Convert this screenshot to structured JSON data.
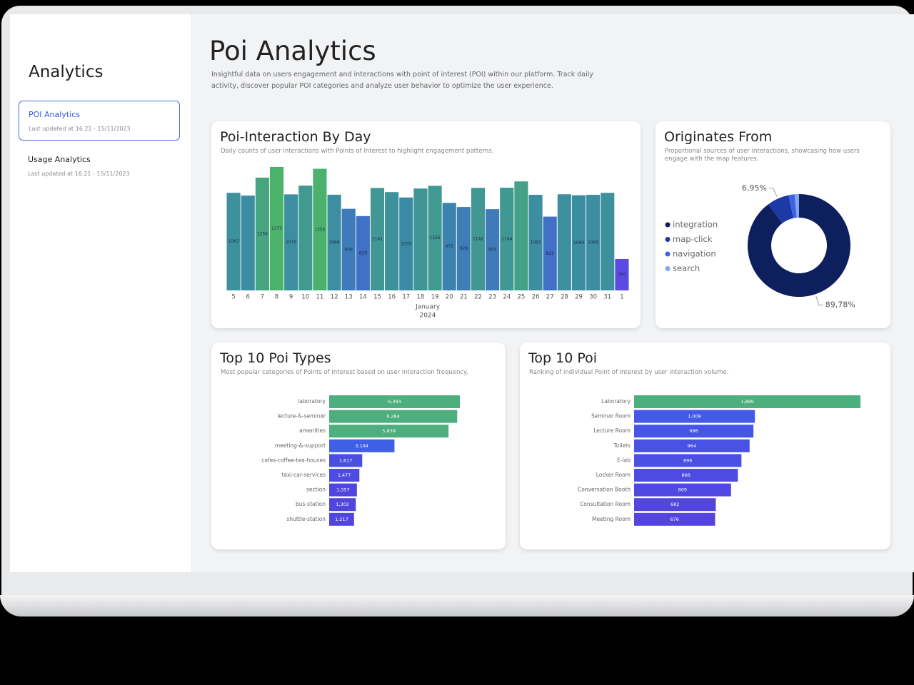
{
  "sidebar": {
    "title": "Analytics",
    "items": [
      {
        "label": "POI Analytics",
        "updated": "Last updated at 16.21 - 15/11/2023"
      },
      {
        "label": "Usage Analytics",
        "updated": "Last updated at 16.21 - 15/11/2023"
      }
    ]
  },
  "header": {
    "title": "Poi Analytics",
    "description": "Insightful data on users engagement and interactions with point of interest (POI) within our platform. Track daily activity, discover popular POI categories and analyze user behavior to optimize the user experience."
  },
  "chart_data": [
    {
      "type": "bar",
      "orientation": "vertical",
      "title": "Poi-Interaction By Day",
      "subtitle": "Daily counts of user interactions with Points of Interest to highlight engagement patterns.",
      "categories": [
        "5",
        "6",
        "7",
        "8",
        "9",
        "10",
        "11",
        "12",
        "13",
        "14",
        "15",
        "16",
        "17",
        "18",
        "19",
        "20",
        "21",
        "22",
        "23",
        "24",
        "25",
        "26",
        "27",
        "28",
        "29",
        "30",
        "31",
        "1"
      ],
      "values": [
        1087,
        1056,
        1256,
        1375,
        1070,
        1167,
        1355,
        1066,
        909,
        828,
        1141,
        1095,
        1035,
        1135,
        1165,
        975,
        929,
        1142,
        905,
        1144,
        1214,
        1065,
        822,
        1071,
        1060,
        1065,
        1087,
        350
      ],
      "value_labels": [
        "1087",
        null,
        "1256",
        "1375",
        "1070",
        null,
        "1355",
        "1066",
        "909",
        "828",
        "1141",
        null,
        "1035",
        null,
        "1165",
        "975",
        "929",
        "1142",
        "905",
        "1144",
        null,
        "1065",
        "822",
        null,
        "1060",
        "1065",
        null,
        "350"
      ],
      "x_label": [
        "January",
        "2024"
      ],
      "color_scale": [
        "#5b4be2",
        "#4660dc",
        "#3a8aa6",
        "#4cb46a"
      ]
    },
    {
      "type": "pie",
      "title": "Originates From",
      "subtitle": "Proportional sources of user interactions, showcasing how users engage with the map features.",
      "categories": [
        "integration",
        "map-click",
        "navigation",
        "search"
      ],
      "values": [
        89.78,
        6.95,
        1.9,
        1.37
      ],
      "value_labels": [
        "89,78%",
        "6,95%",
        null,
        null
      ],
      "colors": [
        "#0d1f5c",
        "#1c3aa6",
        "#3d63e0",
        "#7fa6f0"
      ]
    },
    {
      "type": "bar",
      "orientation": "horizontal",
      "title": "Top 10 Poi Types",
      "subtitle": "Most popular categories of Points of Interest based on user interaction frequency.",
      "categories": [
        "laboratory",
        "lecture-&-seminar",
        "amenities",
        "meeting-&-support",
        "cafes-coffee-tea-houses",
        "taxi-car-services",
        "section",
        "bus-station",
        "shuttle-station"
      ],
      "values": [
        6394,
        6264,
        5839,
        3194,
        1617,
        1477,
        1357,
        1302,
        1217
      ],
      "value_labels": [
        "6,394",
        "6,264",
        "5,839",
        "3,194",
        "1,617",
        "1,477",
        "1,357",
        "1,302",
        "1,217"
      ],
      "colors": [
        "#4caf7d",
        "#4caf7d",
        "#4caf7d",
        "#3f5fe6",
        "#4a4fe0",
        "#4d4be0",
        "#5046df",
        "#5046df",
        "#5046df"
      ]
    },
    {
      "type": "bar",
      "orientation": "horizontal",
      "title": "Top 10 Poi",
      "subtitle": "Ranking of individual Point of Interest by user interaction volume.",
      "categories": [
        "Laboratory",
        "Seminar Room",
        "Lecture Room",
        "Toilets",
        "E-lab",
        "Locker Room",
        "Conversation Booth",
        "Consultation Room",
        "Meeting Room"
      ],
      "values": [
        1889,
        1008,
        996,
        964,
        896,
        866,
        809,
        682,
        676
      ],
      "value_labels": [
        "1,889",
        "1,008",
        "996",
        "964",
        "896",
        "866",
        "809",
        "682",
        "676"
      ],
      "colors": [
        "#4caf7d",
        "#4359e8",
        "#4556e6",
        "#4852e4",
        "#4b4fe3",
        "#4d4be2",
        "#5048e0",
        "#5346df",
        "#5644de"
      ]
    }
  ]
}
